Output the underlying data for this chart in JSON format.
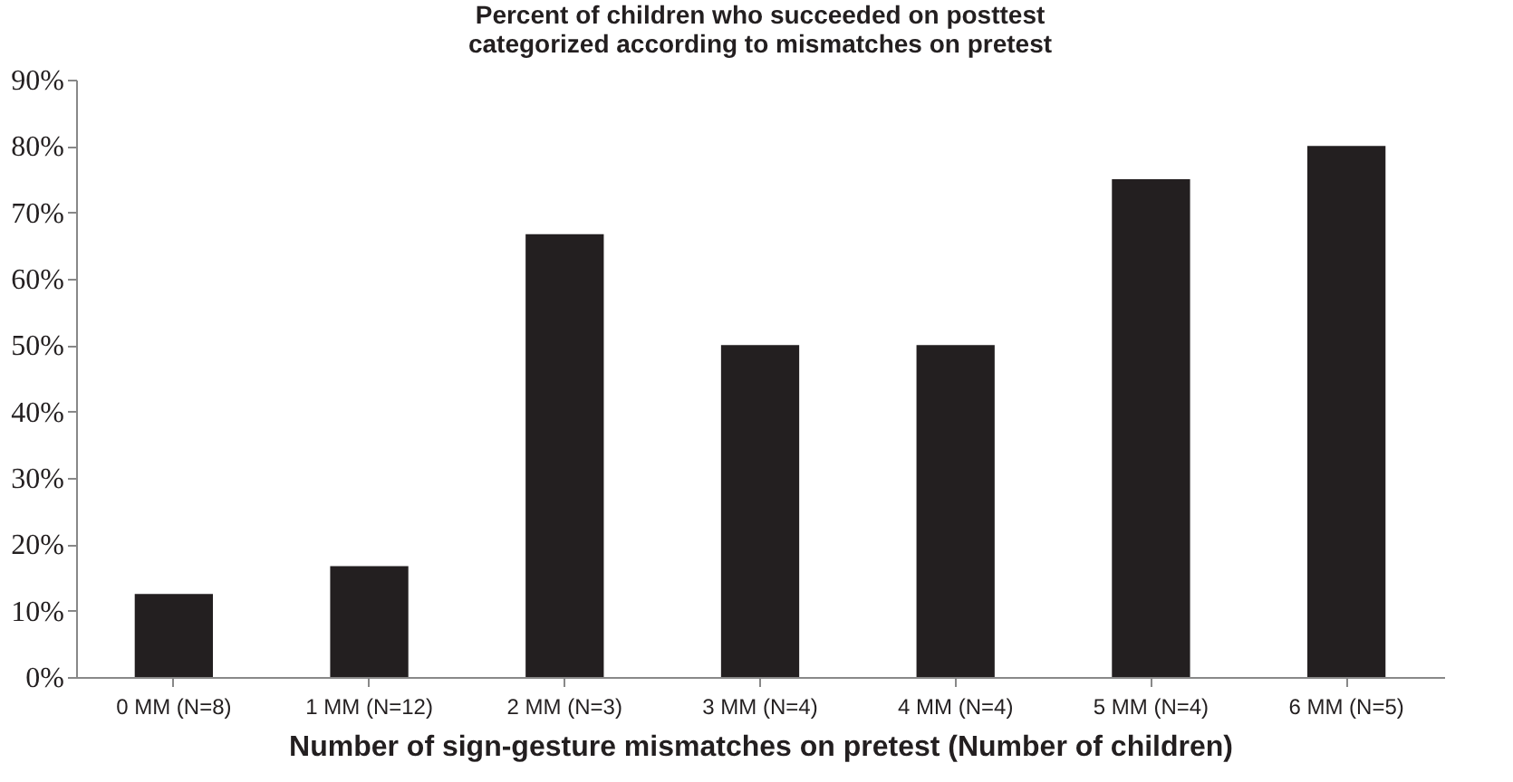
{
  "chart_data": {
    "type": "bar",
    "title": "Percent of children who succeeded on posttest categorized according to mismatches on pretest",
    "xlabel": "Number of sign-gesture mismatches on pretest (Number of children)",
    "categories": [
      "0 MM (N=8)",
      "1 MM (N=12)",
      "2 MM (N=3)",
      "3 MM (N=4)",
      "4 MM (N=4)",
      "5 MM (N=4)",
      "6 MM (N=5)"
    ],
    "values": [
      12.5,
      16.7,
      66.7,
      50,
      50,
      75,
      80
    ],
    "color": "#231f20",
    "ylim": [
      0,
      90
    ],
    "yticks": [
      {
        "value": 0,
        "label": "0%"
      },
      {
        "value": 10,
        "label": "10%"
      },
      {
        "value": 20,
        "label": "20%"
      },
      {
        "value": 30,
        "label": "30%"
      },
      {
        "value": 40,
        "label": "40%"
      },
      {
        "value": 50,
        "label": "50%"
      },
      {
        "value": 60,
        "label": "60%"
      },
      {
        "value": 70,
        "label": "70%"
      },
      {
        "value": 80,
        "label": "80%"
      },
      {
        "value": 90,
        "label": "90%"
      }
    ],
    "grid": false
  }
}
